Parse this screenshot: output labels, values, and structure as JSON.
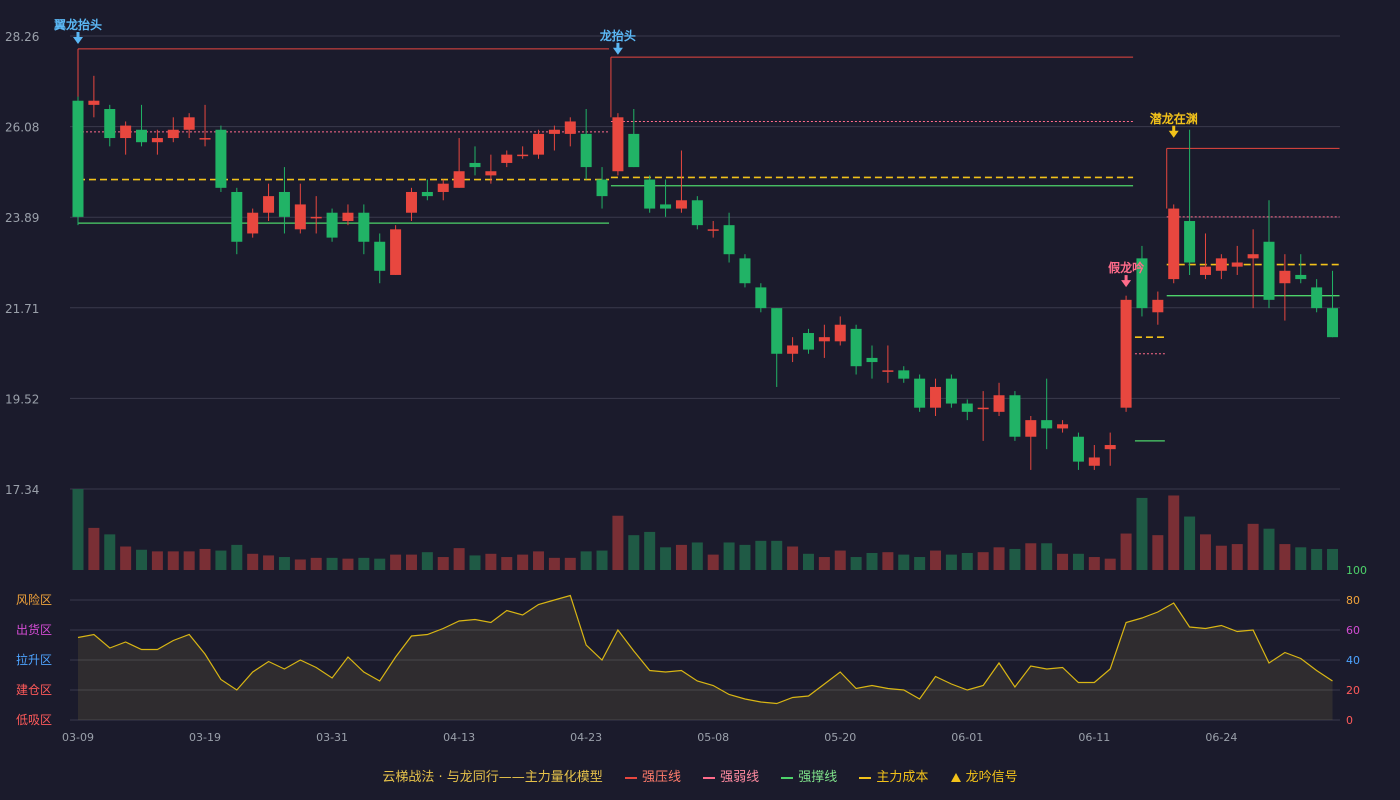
{
  "colors": {
    "bg": "#1b1b2c",
    "up": "#e8473f",
    "down": "#21b366",
    "up_vol": "#7a2f35",
    "down_vol": "#1f5a45",
    "grid": "#3a3a4c",
    "axis_text": "#9aa0aa",
    "cost": "#f2c21a",
    "resist": "#e8473f",
    "weak": "#ff6b8a",
    "support": "#4dd36a",
    "signal_blue": "#5bb8f5",
    "signal_gold": "#f2c21a",
    "signal_red": "#ff6b8a",
    "kdj_line": "#d9b614"
  },
  "chart_data": {
    "type": "candlestick",
    "price_axis": {
      "ylim": [
        17.34,
        28.26
      ],
      "ticks": [
        "28.26",
        "26.08",
        "23.89",
        "21.71",
        "19.52",
        "17.34"
      ]
    },
    "date_ticks": [
      {
        "label": "03-09",
        "i": 0
      },
      {
        "label": "03-19",
        "i": 8
      },
      {
        "label": "03-31",
        "i": 16
      },
      {
        "label": "04-13",
        "i": 24
      },
      {
        "label": "04-23",
        "i": 32
      },
      {
        "label": "05-08",
        "i": 40
      },
      {
        "label": "05-20",
        "i": 48
      },
      {
        "label": "06-01",
        "i": 56
      },
      {
        "label": "06-11",
        "i": 64
      },
      {
        "label": "06-24",
        "i": 72
      }
    ],
    "candles": [
      [
        26.7,
        23.9,
        26.8,
        23.7
      ],
      [
        26.6,
        26.7,
        27.3,
        26.3
      ],
      [
        26.5,
        25.8,
        26.6,
        25.6
      ],
      [
        25.8,
        26.1,
        26.2,
        25.4
      ],
      [
        26.0,
        25.7,
        26.6,
        25.6
      ],
      [
        25.7,
        25.8,
        26.0,
        25.4
      ],
      [
        25.8,
        26.0,
        26.3,
        25.7
      ],
      [
        26.0,
        26.3,
        26.4,
        25.8
      ],
      [
        25.8,
        25.8,
        26.6,
        25.6
      ],
      [
        26.0,
        24.6,
        26.1,
        24.5
      ],
      [
        24.5,
        23.3,
        24.6,
        23.0
      ],
      [
        23.5,
        24.0,
        24.1,
        23.4
      ],
      [
        24.0,
        24.4,
        24.7,
        23.8
      ],
      [
        24.5,
        23.9,
        25.1,
        23.5
      ],
      [
        23.6,
        24.2,
        24.7,
        23.5
      ],
      [
        23.9,
        23.9,
        24.4,
        23.5
      ],
      [
        24.0,
        23.4,
        24.1,
        23.3
      ],
      [
        23.8,
        24.0,
        24.2,
        23.7
      ],
      [
        24.0,
        23.3,
        24.2,
        23.0
      ],
      [
        23.3,
        22.6,
        23.5,
        22.3
      ],
      [
        22.5,
        23.6,
        23.7,
        22.5
      ],
      [
        24.0,
        24.5,
        24.6,
        23.8
      ],
      [
        24.5,
        24.4,
        24.8,
        24.3
      ],
      [
        24.5,
        24.7,
        24.8,
        24.3
      ],
      [
        24.6,
        25.0,
        25.8,
        24.6
      ],
      [
        25.2,
        25.1,
        25.6,
        24.9
      ],
      [
        24.9,
        25.0,
        25.4,
        24.7
      ],
      [
        25.2,
        25.4,
        25.5,
        25.1
      ],
      [
        25.4,
        25.4,
        25.6,
        25.3
      ],
      [
        25.4,
        25.9,
        26.0,
        25.3
      ],
      [
        25.9,
        26.0,
        26.1,
        25.5
      ],
      [
        25.9,
        26.2,
        26.3,
        25.6
      ],
      [
        25.9,
        25.1,
        26.5,
        24.8
      ],
      [
        24.8,
        24.4,
        25.1,
        24.1
      ],
      [
        25.0,
        26.3,
        26.4,
        24.9
      ],
      [
        25.9,
        25.1,
        26.5,
        25.1
      ],
      [
        24.8,
        24.1,
        24.9,
        24.0
      ],
      [
        24.2,
        24.1,
        24.8,
        23.9
      ],
      [
        24.1,
        24.3,
        25.5,
        24.0
      ],
      [
        24.3,
        23.7,
        24.4,
        23.6
      ],
      [
        23.6,
        23.6,
        23.8,
        23.4
      ],
      [
        23.7,
        23.0,
        24.0,
        22.8
      ],
      [
        22.9,
        22.3,
        23.0,
        22.2
      ],
      [
        22.2,
        21.7,
        22.3,
        21.6
      ],
      [
        21.7,
        20.6,
        21.7,
        19.8
      ],
      [
        20.6,
        20.8,
        21.0,
        20.4
      ],
      [
        21.1,
        20.7,
        21.2,
        20.6
      ],
      [
        20.9,
        21.0,
        21.3,
        20.5
      ],
      [
        20.9,
        21.3,
        21.5,
        20.8
      ],
      [
        21.2,
        20.3,
        21.3,
        20.1
      ],
      [
        20.5,
        20.4,
        20.8,
        20.0
      ],
      [
        20.2,
        20.2,
        20.8,
        19.9
      ],
      [
        20.2,
        20.0,
        20.3,
        19.9
      ],
      [
        20.0,
        19.3,
        20.1,
        19.2
      ],
      [
        19.3,
        19.8,
        20.0,
        19.1
      ],
      [
        20.0,
        19.4,
        20.1,
        19.3
      ],
      [
        19.4,
        19.2,
        19.5,
        19.0
      ],
      [
        19.3,
        19.3,
        19.7,
        18.5
      ],
      [
        19.2,
        19.6,
        19.9,
        19.1
      ],
      [
        19.6,
        18.6,
        19.7,
        18.5
      ],
      [
        18.6,
        19.0,
        19.1,
        17.8
      ],
      [
        19.0,
        18.8,
        20.0,
        18.3
      ],
      [
        18.8,
        18.9,
        19.0,
        18.7
      ],
      [
        18.6,
        18.0,
        18.7,
        17.8
      ],
      [
        17.9,
        18.1,
        18.4,
        17.8
      ],
      [
        18.3,
        18.4,
        18.7,
        17.9
      ],
      [
        19.3,
        21.9,
        22.0,
        19.2
      ],
      [
        22.9,
        21.7,
        23.2,
        21.5
      ],
      [
        21.6,
        21.9,
        22.1,
        21.3
      ],
      [
        22.4,
        24.1,
        24.2,
        22.3
      ],
      [
        23.8,
        22.8,
        26.0,
        22.5
      ],
      [
        22.5,
        22.7,
        23.5,
        22.4
      ],
      [
        22.6,
        22.9,
        23.0,
        22.4
      ],
      [
        22.7,
        22.8,
        23.2,
        22.5
      ],
      [
        22.9,
        23.0,
        23.6,
        21.7
      ],
      [
        23.3,
        21.9,
        24.3,
        21.7
      ],
      [
        22.3,
        22.6,
        23.0,
        21.4
      ],
      [
        22.5,
        22.4,
        23.0,
        22.3
      ],
      [
        22.2,
        21.7,
        22.4,
        21.6
      ],
      [
        21.7,
        21.0,
        22.6,
        21.0
      ]
    ],
    "volume": [
      100,
      52,
      44,
      29,
      25,
      23,
      23,
      23,
      26,
      24,
      31,
      20,
      18,
      16,
      13,
      15,
      15,
      14,
      15,
      14,
      19,
      19,
      22,
      16,
      27,
      18,
      20,
      16,
      19,
      23,
      15,
      15,
      23,
      24,
      67,
      43,
      47,
      28,
      31,
      34,
      19,
      34,
      31,
      36,
      36,
      29,
      20,
      16,
      24,
      16,
      21,
      22,
      19,
      16,
      24,
      19,
      21,
      22,
      28,
      26,
      33,
      33,
      20,
      20,
      16,
      14,
      45,
      89,
      43,
      92,
      66,
      44,
      30,
      32,
      57,
      51,
      32,
      28,
      26,
      26
    ],
    "kdj": [
      55,
      57,
      48,
      52,
      47,
      47,
      53,
      57,
      44,
      27,
      20,
      32,
      39,
      34,
      40,
      35,
      28,
      42,
      32,
      26,
      42,
      56,
      57,
      61,
      66,
      67,
      65,
      73,
      70,
      77,
      80,
      83,
      50,
      40,
      60,
      46,
      33,
      32,
      33,
      26,
      23,
      17,
      14,
      12,
      11,
      15,
      16,
      24,
      32,
      21,
      23,
      21,
      20,
      14,
      29,
      24,
      20,
      23,
      38,
      22,
      36,
      34,
      35,
      25,
      25,
      34,
      65,
      68,
      72,
      78,
      62,
      61,
      63,
      59,
      60,
      38,
      45,
      41,
      33,
      26
    ],
    "kdj_axis": {
      "left": [
        "风险区",
        "出货区",
        "拉升区",
        "建仓区",
        "低吸区"
      ],
      "right": [
        "100",
        "80",
        "60",
        "40",
        "20",
        "0"
      ]
    },
    "resistance": [
      {
        "from": 0,
        "to": 33,
        "price": 27.95
      },
      {
        "from": 34,
        "to": 66,
        "price": 27.75
      },
      {
        "from": 69,
        "to": 79,
        "price": 25.55
      }
    ],
    "weak": [
      {
        "from": 0,
        "to": 33,
        "price": 25.95
      },
      {
        "from": 34,
        "to": 66,
        "price": 26.2
      },
      {
        "from": 67,
        "to": 68,
        "price": 20.6
      },
      {
        "from": 69,
        "to": 79,
        "price": 23.9
      }
    ],
    "cost": [
      {
        "from": 0,
        "to": 33,
        "price": 24.8
      },
      {
        "from": 34,
        "to": 66,
        "price": 24.85
      },
      {
        "from": 67,
        "to": 68,
        "price": 21.0
      },
      {
        "from": 69,
        "to": 79,
        "price": 22.75
      }
    ],
    "support": [
      {
        "from": 0,
        "to": 33,
        "price": 23.75
      },
      {
        "from": 34,
        "to": 66,
        "price": 24.65
      },
      {
        "from": 67,
        "to": 68,
        "price": 18.5
      },
      {
        "from": 69,
        "to": 79,
        "price": 22.0
      }
    ],
    "signals": [
      {
        "label": "翼龙抬头",
        "i": 0,
        "kind": "blue",
        "price": 28.26
      },
      {
        "label": "龙抬头",
        "i": 34,
        "kind": "blue",
        "price": 28.0
      },
      {
        "label": "潜龙在渊",
        "i": 69,
        "kind": "gold",
        "price": 26.0
      },
      {
        "label": "假龙吟",
        "i": 66,
        "kind": "red",
        "price": 22.4
      }
    ],
    "legend": {
      "title": "云梯战法 · 与龙同行——主力量化模型",
      "items": [
        {
          "label": "强压线",
          "kind": "resist"
        },
        {
          "label": "强弱线",
          "kind": "weak"
        },
        {
          "label": "强撑线",
          "kind": "support"
        },
        {
          "label": "主力成本",
          "kind": "cost"
        },
        {
          "label": "龙吟信号",
          "kind": "signal"
        }
      ]
    }
  }
}
